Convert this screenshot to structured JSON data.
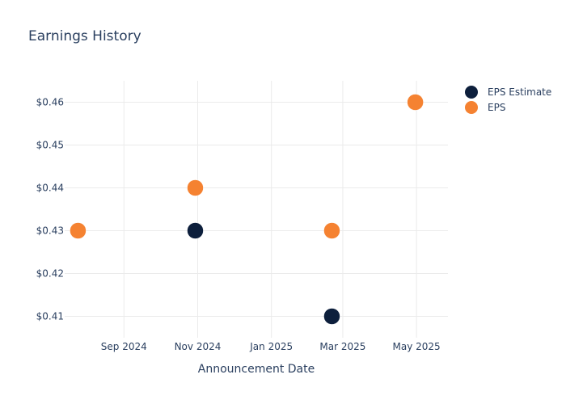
{
  "chart_data": {
    "type": "scatter",
    "title": "Earnings History",
    "xlabel": "Announcement Date",
    "ylabel": "",
    "x_ticks": [
      "2024-09-01",
      "2024-11-01",
      "2025-01-01",
      "2025-03-01",
      "2025-05-01"
    ],
    "x_tick_labels": [
      "Sep 2024",
      "Nov 2024",
      "Jan 2025",
      "Mar 2025",
      "May 2025"
    ],
    "y_ticks": [
      0.41,
      0.42,
      0.43,
      0.44,
      0.45,
      0.46
    ],
    "y_tick_labels": [
      "$0.41",
      "$0.42",
      "$0.43",
      "$0.44",
      "$0.45",
      "$0.46"
    ],
    "xlim": [
      "2024-07-14",
      "2025-05-27"
    ],
    "ylim": [
      0.405,
      0.465
    ],
    "grid": true,
    "legend_position": "top-right",
    "series": [
      {
        "name": "EPS Estimate",
        "color": "#0d1f3c",
        "x": [
          "2024-07-25",
          "2024-10-30",
          "2025-02-20",
          "2025-04-30"
        ],
        "y": [
          0.43,
          0.43,
          0.41,
          0.46
        ]
      },
      {
        "name": "EPS",
        "color": "#f58231",
        "x": [
          "2024-07-25",
          "2024-10-30",
          "2025-02-20",
          "2025-04-30"
        ],
        "y": [
          0.43,
          0.44,
          0.43,
          0.46
        ]
      }
    ]
  }
}
